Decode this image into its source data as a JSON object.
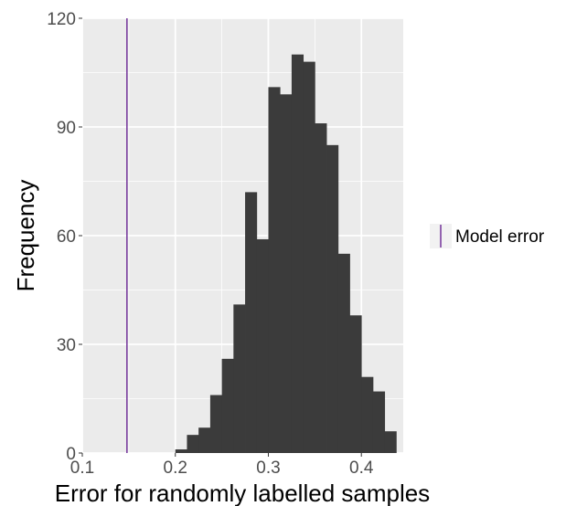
{
  "chart_data": {
    "type": "bar",
    "subtype": "histogram",
    "xlabel": "Error for randomly labelled samples",
    "ylabel": "Frequency",
    "xlim": [
      0.1,
      0.445
    ],
    "ylim": [
      0,
      120
    ],
    "x_ticks": [
      "0.1",
      "0.2",
      "0.3",
      "0.4"
    ],
    "y_ticks": [
      "0",
      "30",
      "60",
      "90",
      "120"
    ],
    "bin_width": 0.0125,
    "bins": [
      {
        "x0": 0.2,
        "x1": 0.2125,
        "count": 1
      },
      {
        "x0": 0.2125,
        "x1": 0.225,
        "count": 5
      },
      {
        "x0": 0.225,
        "x1": 0.2375,
        "count": 7
      },
      {
        "x0": 0.2375,
        "x1": 0.25,
        "count": 16
      },
      {
        "x0": 0.25,
        "x1": 0.2625,
        "count": 26
      },
      {
        "x0": 0.2625,
        "x1": 0.275,
        "count": 41
      },
      {
        "x0": 0.275,
        "x1": 0.2875,
        "count": 72
      },
      {
        "x0": 0.2875,
        "x1": 0.3,
        "count": 59
      },
      {
        "x0": 0.3,
        "x1": 0.3125,
        "count": 101
      },
      {
        "x0": 0.3125,
        "x1": 0.325,
        "count": 99
      },
      {
        "x0": 0.325,
        "x1": 0.3375,
        "count": 110
      },
      {
        "x0": 0.3375,
        "x1": 0.35,
        "count": 108
      },
      {
        "x0": 0.35,
        "x1": 0.3625,
        "count": 91
      },
      {
        "x0": 0.3625,
        "x1": 0.375,
        "count": 85
      },
      {
        "x0": 0.375,
        "x1": 0.3875,
        "count": 55
      },
      {
        "x0": 0.3875,
        "x1": 0.4,
        "count": 38
      },
      {
        "x0": 0.4,
        "x1": 0.4125,
        "count": 21
      },
      {
        "x0": 0.4125,
        "x1": 0.425,
        "count": 17
      },
      {
        "x0": 0.425,
        "x1": 0.4375,
        "count": 6
      }
    ],
    "vline": {
      "x": 0.148,
      "label": "Model error",
      "color": "#7b3fa0"
    },
    "grid": true,
    "panel_background": "#ebebeb",
    "bar_color": "#3b3b3b",
    "legend": {
      "position": "right",
      "entries": [
        "Model error"
      ]
    }
  }
}
